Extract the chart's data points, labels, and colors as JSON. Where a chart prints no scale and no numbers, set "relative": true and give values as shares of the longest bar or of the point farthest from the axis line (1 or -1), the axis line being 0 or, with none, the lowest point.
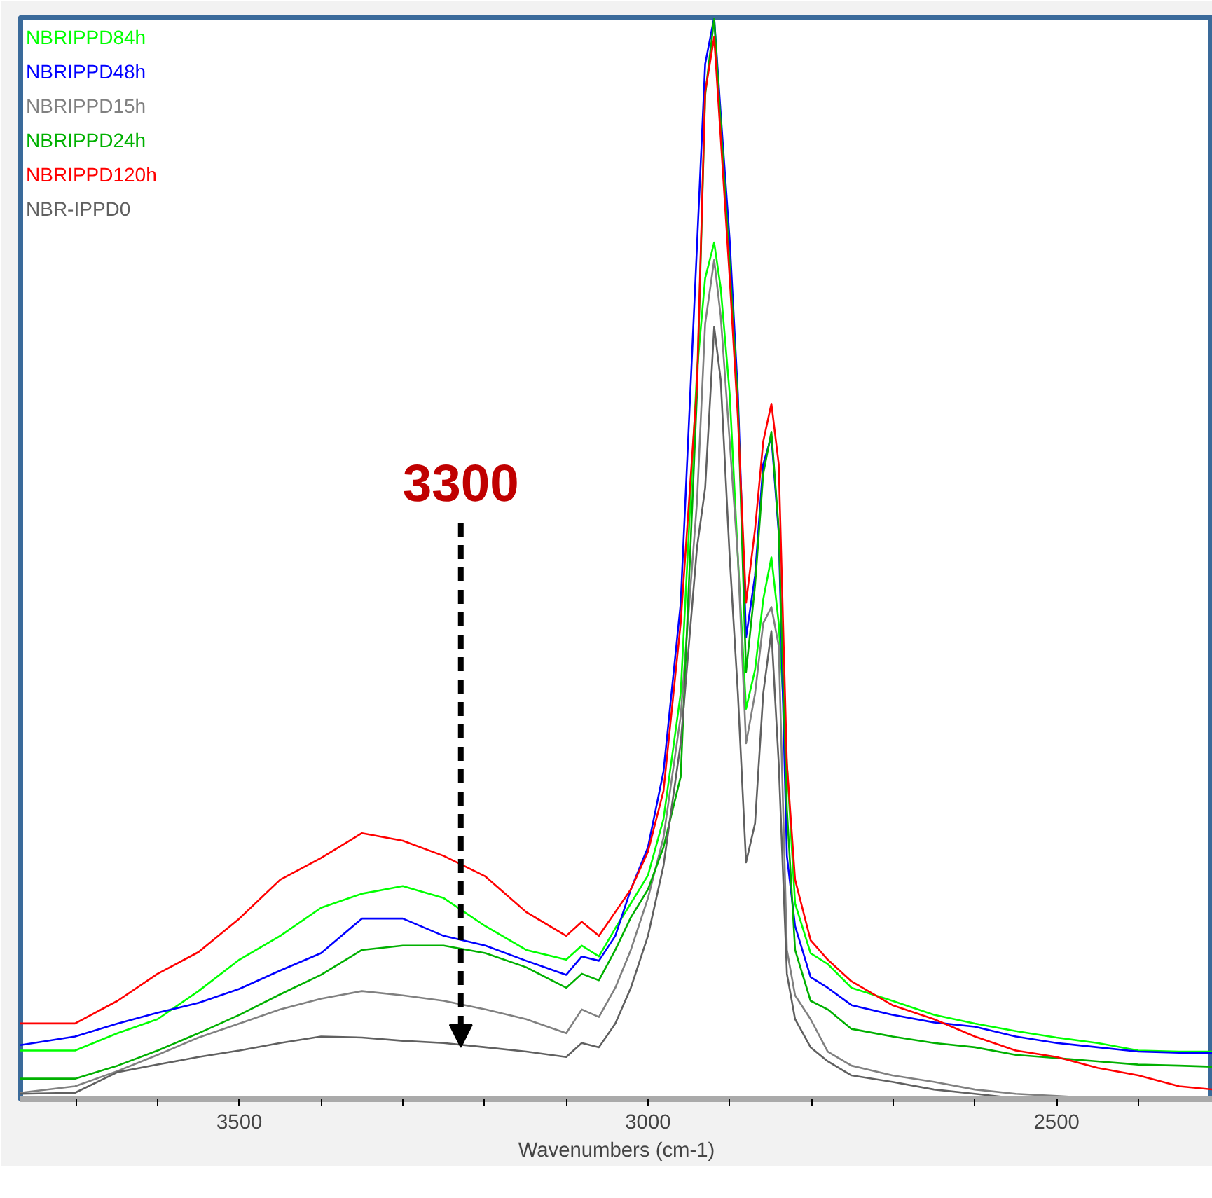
{
  "chart_data": {
    "type": "line",
    "relative": true,
    "xlabel": "Wavenumbers (cm-1)",
    "xlim": [
      3768,
      2309
    ],
    "xticks": [
      {
        "value": 3700,
        "label": null
      },
      {
        "value": 3600,
        "label": null
      },
      3500,
      {
        "value": 3400,
        "label": null
      },
      {
        "value": 3300,
        "label": null
      },
      {
        "value": 3200,
        "label": null
      },
      {
        "value": 3100,
        "label": null
      },
      3000,
      {
        "value": 2900,
        "label": null
      },
      {
        "value": 2800,
        "label": null
      },
      {
        "value": 2700,
        "label": null
      },
      {
        "value": 2600,
        "label": null
      },
      2500,
      {
        "value": 2400,
        "label": null
      }
    ],
    "x": [
      3768,
      3701,
      3649,
      3600,
      3550,
      3500,
      3450,
      3400,
      3350,
      3300,
      3250,
      3199,
      3149,
      3100,
      3081,
      3060,
      3040,
      3021,
      3000,
      2981,
      2960,
      2940,
      2930,
      2919,
      2911,
      2900,
      2890,
      2880,
      2869,
      2859,
      2849,
      2840,
      2830,
      2820,
      2801,
      2780,
      2751,
      2701,
      2650,
      2600,
      2550,
      2500,
      2450,
      2400,
      2350,
      2309
    ],
    "legend": "top left",
    "grid": false,
    "line_style": "solid",
    "marker": "none",
    "series": [
      {
        "name": "NBRIPPD84h",
        "color": "#00ff00",
        "values": [
          0.045,
          0.045,
          0.061,
          0.074,
          0.1,
          0.129,
          0.151,
          0.177,
          0.19,
          0.197,
          0.186,
          0.16,
          0.138,
          0.129,
          0.142,
          0.132,
          0.158,
          0.181,
          0.207,
          0.259,
          0.375,
          0.673,
          0.759,
          0.792,
          0.75,
          0.652,
          0.501,
          0.361,
          0.397,
          0.462,
          0.501,
          0.44,
          0.31,
          0.181,
          0.135,
          0.125,
          0.103,
          0.091,
          0.078,
          0.07,
          0.063,
          0.057,
          0.052,
          0.045,
          0.044,
          0.044
        ]
      },
      {
        "name": "NBRIPPD48h",
        "color": "#0000ff",
        "values": [
          0.05,
          0.058,
          0.07,
          0.08,
          0.089,
          0.102,
          0.119,
          0.135,
          0.167,
          0.167,
          0.151,
          0.142,
          0.128,
          0.115,
          0.132,
          0.128,
          0.151,
          0.194,
          0.233,
          0.303,
          0.458,
          0.789,
          0.957,
          1.0,
          0.911,
          0.794,
          0.652,
          0.427,
          0.484,
          0.587,
          0.613,
          0.523,
          0.225,
          0.16,
          0.113,
          0.103,
          0.087,
          0.078,
          0.071,
          0.067,
          0.058,
          0.052,
          0.048,
          0.044,
          0.043,
          0.043
        ]
      },
      {
        "name": "NBRIPPD15h",
        "color": "#808080",
        "values": [
          0.006,
          0.012,
          0.026,
          0.041,
          0.057,
          0.07,
          0.083,
          0.093,
          0.1,
          0.096,
          0.091,
          0.083,
          0.074,
          0.061,
          0.083,
          0.076,
          0.103,
          0.138,
          0.186,
          0.242,
          0.354,
          0.552,
          0.717,
          0.776,
          0.724,
          0.608,
          0.501,
          0.329,
          0.375,
          0.44,
          0.455,
          0.419,
          0.138,
          0.096,
          0.074,
          0.044,
          0.031,
          0.022,
          0.016,
          0.009,
          0.005,
          0.003,
          0.001,
          0.001,
          0.001,
          0.001
        ]
      },
      {
        "name": "NBRIPPD24h",
        "color": "#00b000",
        "values": [
          0.019,
          0.019,
          0.031,
          0.045,
          0.061,
          0.078,
          0.097,
          0.115,
          0.138,
          0.142,
          0.142,
          0.135,
          0.122,
          0.103,
          0.116,
          0.11,
          0.138,
          0.168,
          0.194,
          0.233,
          0.298,
          0.652,
          0.928,
          0.999,
          0.902,
          0.772,
          0.643,
          0.395,
          0.475,
          0.578,
          0.617,
          0.527,
          0.268,
          0.138,
          0.091,
          0.083,
          0.065,
          0.058,
          0.052,
          0.048,
          0.041,
          0.038,
          0.035,
          0.032,
          0.031,
          0.03
        ]
      },
      {
        "name": "NBRIPPD120h",
        "color": "#ff0000",
        "values": [
          0.07,
          0.07,
          0.091,
          0.116,
          0.136,
          0.167,
          0.203,
          0.223,
          0.246,
          0.239,
          0.225,
          0.206,
          0.173,
          0.151,
          0.164,
          0.151,
          0.173,
          0.194,
          0.229,
          0.285,
          0.44,
          0.66,
          0.931,
          0.982,
          0.889,
          0.759,
          0.63,
          0.459,
          0.527,
          0.608,
          0.643,
          0.587,
          0.31,
          0.203,
          0.147,
          0.129,
          0.109,
          0.087,
          0.074,
          0.058,
          0.045,
          0.039,
          0.029,
          0.022,
          0.012,
          0.009
        ]
      },
      {
        "name": "NBR-IPPD0",
        "color": "#606060",
        "values": [
          0.005,
          0.006,
          0.025,
          0.032,
          0.039,
          0.045,
          0.052,
          0.058,
          0.057,
          0.054,
          0.052,
          0.048,
          0.044,
          0.039,
          0.052,
          0.048,
          0.07,
          0.103,
          0.151,
          0.216,
          0.329,
          0.51,
          0.565,
          0.714,
          0.665,
          0.501,
          0.375,
          0.219,
          0.255,
          0.375,
          0.433,
          0.31,
          0.116,
          0.074,
          0.048,
          0.035,
          0.022,
          0.016,
          0.009,
          0.005,
          0.001,
          0.001,
          0.001,
          0.001,
          0.001,
          0.001
        ]
      }
    ],
    "annotations": [
      {
        "text": "3300",
        "x": 3229,
        "y": 0.048
      }
    ]
  }
}
